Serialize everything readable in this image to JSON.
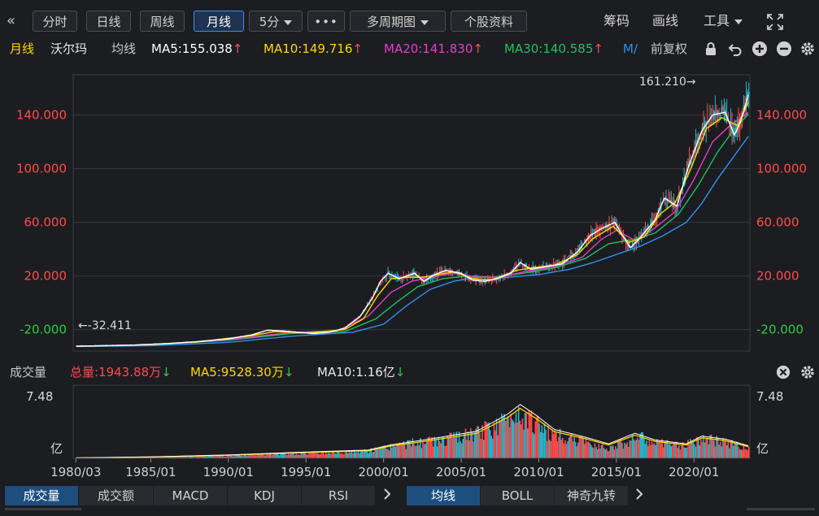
{
  "toolbar": {
    "collapse_arrow": "«",
    "buttons": [
      "分时",
      "日线",
      "周线",
      "月线"
    ],
    "interval": "5分",
    "more": "•••",
    "multi_period": "多周期图",
    "stock_info": "个股资料",
    "chips": "筹码",
    "draw": "画线",
    "tools": "工具"
  },
  "infobar": {
    "period": "月线",
    "stock": "沃尔玛",
    "ma_label": "均线",
    "ma5": "MA5:155.038",
    "ma10": "MA10:149.716",
    "ma20": "MA20:141.830",
    "ma30": "MA30:140.585",
    "ma_more": "M/",
    "adjust": "前复权"
  },
  "volume_bar": {
    "label": "成交量",
    "total": "总量:1943.88万",
    "ma5": "MA5:9528.30万",
    "ma10": "MA10:1.16亿"
  },
  "colors": {
    "up": "#ff4a4a",
    "down": "#2ecc40",
    "ma5": "#ffffff",
    "ma10": "#ffd700",
    "ma20": "#e040c8",
    "ma30": "#20c060",
    "ma60": "#3090f0"
  },
  "chart_data": {
    "type": "line",
    "price_axis": {
      "ticks": [
        "140.000",
        "100.000",
        "60.000",
        "20.000",
        "-20.000"
      ],
      "tick_values": [
        140,
        100,
        60,
        20,
        -20
      ],
      "ylim": [
        -36,
        170
      ]
    },
    "price_labels": {
      "high": "161.210",
      "low": "-32.411"
    },
    "volume_axis": {
      "top": "7.48",
      "unit": "亿",
      "ylim": [
        0,
        7.48
      ]
    },
    "x_ticks": [
      "1980/03",
      "1985/01",
      "1990/01",
      "1995/01",
      "2000/01",
      "2005/01",
      "2010/01",
      "2015/01",
      "2020/01"
    ],
    "x_tick_years": [
      1980.17,
      1985,
      1990,
      1995,
      2000,
      2005,
      2010,
      2015,
      2020
    ],
    "xlim": [
      1980.0,
      2023.6
    ],
    "ma5_close": [
      [
        1980.2,
        -32.4
      ],
      [
        1982,
        -32
      ],
      [
        1984,
        -31.5
      ],
      [
        1986,
        -30.5
      ],
      [
        1988,
        -29
      ],
      [
        1990,
        -27
      ],
      [
        1991.5,
        -24
      ],
      [
        1992.5,
        -20.5
      ],
      [
        1993.5,
        -21
      ],
      [
        1994.5,
        -22
      ],
      [
        1995.5,
        -23
      ],
      [
        1996.5,
        -22
      ],
      [
        1997.5,
        -19
      ],
      [
        1998.5,
        -10
      ],
      [
        1999.3,
        4
      ],
      [
        1999.8,
        16
      ],
      [
        2000.3,
        22
      ],
      [
        2001,
        18
      ],
      [
        2002,
        22
      ],
      [
        2002.6,
        16
      ],
      [
        2003.3,
        21
      ],
      [
        2004,
        24
      ],
      [
        2005,
        22
      ],
      [
        2005.7,
        17
      ],
      [
        2006.5,
        16
      ],
      [
        2007.3,
        18
      ],
      [
        2008.2,
        22
      ],
      [
        2008.8,
        30
      ],
      [
        2009.5,
        25
      ],
      [
        2010.5,
        27
      ],
      [
        2011.5,
        29
      ],
      [
        2012.5,
        38
      ],
      [
        2013.3,
        50
      ],
      [
        2014,
        55
      ],
      [
        2014.9,
        60
      ],
      [
        2015.3,
        52
      ],
      [
        2015.9,
        41
      ],
      [
        2016.5,
        48
      ],
      [
        2017.5,
        62
      ],
      [
        2018.1,
        78
      ],
      [
        2018.9,
        72
      ],
      [
        2019.6,
        100
      ],
      [
        2020.5,
        128
      ],
      [
        2021.2,
        140
      ],
      [
        2022.0,
        142
      ],
      [
        2022.6,
        125
      ],
      [
        2023.0,
        135
      ],
      [
        2023.5,
        155
      ]
    ],
    "ma10_close": [
      [
        1980.2,
        -32.4
      ],
      [
        1984,
        -31.6
      ],
      [
        1988,
        -29.2
      ],
      [
        1991.5,
        -24.5
      ],
      [
        1993,
        -21.5
      ],
      [
        1995,
        -22.5
      ],
      [
        1997.5,
        -20
      ],
      [
        1998.7,
        -12
      ],
      [
        1999.6,
        5
      ],
      [
        2000.5,
        18
      ],
      [
        2001.5,
        19
      ],
      [
        2002.5,
        19
      ],
      [
        2003.5,
        21
      ],
      [
        2004.5,
        23
      ],
      [
        2005.8,
        18
      ],
      [
        2007,
        17
      ],
      [
        2008.5,
        24
      ],
      [
        2009.5,
        26
      ],
      [
        2011,
        28
      ],
      [
        2012.5,
        36
      ],
      [
        2013.5,
        48
      ],
      [
        2014.8,
        57
      ],
      [
        2015.8,
        45
      ],
      [
        2016.8,
        49
      ],
      [
        2017.8,
        66
      ],
      [
        2018.8,
        75
      ],
      [
        2019.8,
        100
      ],
      [
        2020.8,
        130
      ],
      [
        2021.8,
        138
      ],
      [
        2022.8,
        132
      ],
      [
        2023.5,
        149.7
      ]
    ],
    "ma20_close": [
      [
        1980.2,
        -32.4
      ],
      [
        1985,
        -31.2
      ],
      [
        1990,
        -27.5
      ],
      [
        1994,
        -22
      ],
      [
        1997,
        -21
      ],
      [
        1999,
        -10
      ],
      [
        2000.5,
        8
      ],
      [
        2001.8,
        16
      ],
      [
        2003,
        19
      ],
      [
        2004.5,
        22
      ],
      [
        2006,
        19
      ],
      [
        2007.5,
        19
      ],
      [
        2009,
        23
      ],
      [
        2011,
        27
      ],
      [
        2012.8,
        34
      ],
      [
        2014,
        47
      ],
      [
        2015,
        54
      ],
      [
        2016.3,
        46
      ],
      [
        2017.5,
        56
      ],
      [
        2018.8,
        68
      ],
      [
        2020,
        92
      ],
      [
        2021.2,
        120
      ],
      [
        2022.3,
        132
      ],
      [
        2023.5,
        141.8
      ]
    ],
    "ma30_close": [
      [
        1980.2,
        -32.4
      ],
      [
        1985,
        -31.4
      ],
      [
        1990,
        -28
      ],
      [
        1994,
        -23
      ],
      [
        1997.5,
        -21.5
      ],
      [
        1999.5,
        -12
      ],
      [
        2000.8,
        0
      ],
      [
        2002.2,
        12
      ],
      [
        2003.8,
        18
      ],
      [
        2005.5,
        20
      ],
      [
        2007,
        19
      ],
      [
        2009,
        22
      ],
      [
        2011,
        26
      ],
      [
        2013,
        33
      ],
      [
        2014.5,
        44
      ],
      [
        2016,
        47
      ],
      [
        2017.5,
        52
      ],
      [
        2019,
        66
      ],
      [
        2020.3,
        88
      ],
      [
        2021.5,
        112
      ],
      [
        2022.5,
        128
      ],
      [
        2023.5,
        140.6
      ]
    ],
    "ma60_close": [
      [
        1980.2,
        -32.6
      ],
      [
        1985,
        -32
      ],
      [
        1990,
        -29.5
      ],
      [
        1994,
        -25
      ],
      [
        1998,
        -22
      ],
      [
        2000,
        -16
      ],
      [
        2001.5,
        -2
      ],
      [
        2003,
        10
      ],
      [
        2004.5,
        16
      ],
      [
        2006,
        19
      ],
      [
        2008,
        19
      ],
      [
        2010,
        21
      ],
      [
        2012,
        25
      ],
      [
        2013.5,
        30
      ],
      [
        2015,
        36
      ],
      [
        2016.5,
        42
      ],
      [
        2018,
        50
      ],
      [
        2019.5,
        60
      ],
      [
        2020.5,
        74
      ],
      [
        2021.5,
        92
      ],
      [
        2022.5,
        108
      ],
      [
        2023.5,
        124
      ]
    ],
    "volume_envelope": [
      [
        1980.2,
        0.05
      ],
      [
        1985,
        0.15
      ],
      [
        1990,
        0.35
      ],
      [
        1993,
        0.55
      ],
      [
        1996,
        0.7
      ],
      [
        1999,
        0.9
      ],
      [
        2000.5,
        1.6
      ],
      [
        2002,
        2.0
      ],
      [
        2004,
        2.4
      ],
      [
        2006,
        3.2
      ],
      [
        2007.5,
        4.4
      ],
      [
        2008.6,
        6.2
      ],
      [
        2009.3,
        5.5
      ],
      [
        2010.5,
        3.4
      ],
      [
        2012,
        2.6
      ],
      [
        2013.5,
        1.9
      ],
      [
        2014.5,
        1.4
      ],
      [
        2015.5,
        2.0
      ],
      [
        2016.3,
        2.8
      ],
      [
        2017.5,
        2.0
      ],
      [
        2018.5,
        1.8
      ],
      [
        2019.5,
        1.7
      ],
      [
        2020.4,
        2.6
      ],
      [
        2021.5,
        2.2
      ],
      [
        2022.5,
        2.0
      ],
      [
        2023.5,
        1.2
      ]
    ],
    "vol_ma_line": [
      [
        1980.2,
        0.05
      ],
      [
        1985,
        0.15
      ],
      [
        1990,
        0.35
      ],
      [
        1995,
        0.65
      ],
      [
        1999,
        0.85
      ],
      [
        2000.5,
        1.4
      ],
      [
        2003,
        2.0
      ],
      [
        2006,
        2.8
      ],
      [
        2008,
        4.6
      ],
      [
        2008.8,
        5.6
      ],
      [
        2009.8,
        4.5
      ],
      [
        2011,
        3.0
      ],
      [
        2013,
        2.2
      ],
      [
        2014.5,
        1.5
      ],
      [
        2016.2,
        2.6
      ],
      [
        2017.5,
        1.9
      ],
      [
        2019.5,
        1.5
      ],
      [
        2020.5,
        2.3
      ],
      [
        2022,
        2.0
      ],
      [
        2023.5,
        1.3
      ]
    ]
  },
  "bottom_tabs": {
    "left": [
      "成交量",
      "成交额",
      "MACD",
      "KDJ",
      "RSI"
    ],
    "right": [
      "均线",
      "BOLL",
      "神奇九转"
    ]
  }
}
